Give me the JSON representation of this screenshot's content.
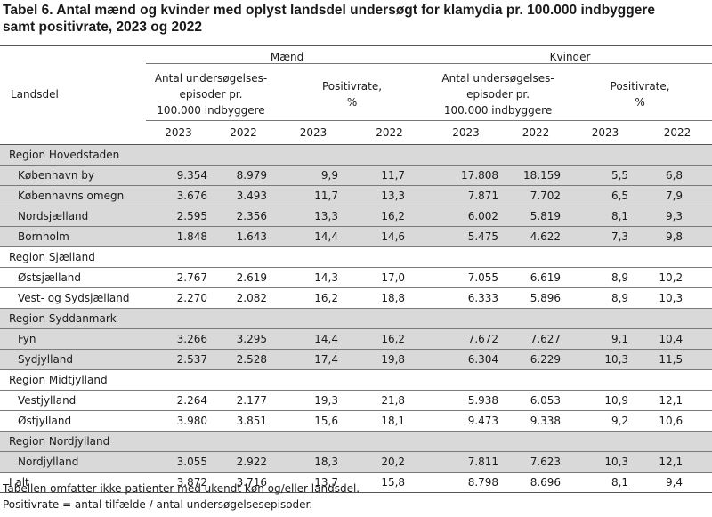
{
  "title": {
    "line1": "Tabel 6. Antal mænd og kvinder med oplyst landsdel undersøgt for klamydia pr. 100.000 indbyggere",
    "line2": "samt positivrate, 2023 og 2022"
  },
  "header": {
    "landsdel": "Landsdel",
    "men": "Mænd",
    "women": "Kvinder",
    "examined_line1": "Antal undersøgelses-",
    "examined_line2": "episoder pr.",
    "examined_line3": "100.000 indbyggere",
    "positive_line1": "Positivrate,",
    "positive_line2": "%",
    "years": [
      "2023",
      "2022",
      "2023",
      "2022",
      "2023",
      "2022",
      "2023",
      "2022"
    ]
  },
  "rows": [
    {
      "type": "region",
      "label": "Region Hovedstaden"
    },
    {
      "type": "data",
      "label": "København by",
      "values": [
        "9.354",
        "8.979",
        "9,9",
        "11,7",
        "17.808",
        "18.159",
        "5,5",
        "6,8"
      ]
    },
    {
      "type": "data",
      "label": "Københavns omegn",
      "values": [
        "3.676",
        "3.493",
        "11,7",
        "13,3",
        "7.871",
        "7.702",
        "6,5",
        "7,9"
      ]
    },
    {
      "type": "data",
      "label": "Nordsjælland",
      "values": [
        "2.595",
        "2.356",
        "13,3",
        "16,2",
        "6.002",
        "5.819",
        "8,1",
        "9,3"
      ]
    },
    {
      "type": "data",
      "label": "Bornholm",
      "values": [
        "1.848",
        "1.643",
        "14,4",
        "14,6",
        "5.475",
        "4.622",
        "7,3",
        "9,8"
      ]
    },
    {
      "type": "region",
      "label": "Region Sjælland"
    },
    {
      "type": "data",
      "label": "Østsjælland",
      "values": [
        "2.767",
        "2.619",
        "14,3",
        "17,0",
        "7.055",
        "6.619",
        "8,9",
        "10,2"
      ]
    },
    {
      "type": "data",
      "label": "Vest- og Sydsjælland",
      "values": [
        "2.270",
        "2.082",
        "16,2",
        "18,8",
        "6.333",
        "5.896",
        "8,9",
        "10,3"
      ]
    },
    {
      "type": "region",
      "label": "Region Syddanmark"
    },
    {
      "type": "data",
      "label": "Fyn",
      "values": [
        "3.266",
        "3.295",
        "14,4",
        "16,2",
        "7.672",
        "7.627",
        "9,1",
        "10,4"
      ]
    },
    {
      "type": "data",
      "label": "Sydjylland",
      "values": [
        "2.537",
        "2.528",
        "17,4",
        "19,8",
        "6.304",
        "6.229",
        "10,3",
        "11,5"
      ]
    },
    {
      "type": "region",
      "label": "Region Midtjylland"
    },
    {
      "type": "data",
      "label": "Vestjylland",
      "values": [
        "2.264",
        "2.177",
        "19,3",
        "21,8",
        "5.938",
        "6.053",
        "10,9",
        "12,1"
      ]
    },
    {
      "type": "data",
      "label": "Østjylland",
      "values": [
        "3.980",
        "3.851",
        "15,6",
        "18,1",
        "9.473",
        "9.338",
        "9,2",
        "10,6"
      ]
    },
    {
      "type": "region",
      "label": "Region Nordjylland"
    },
    {
      "type": "data",
      "label": "Nordjylland",
      "values": [
        "3.055",
        "2.922",
        "18,3",
        "20,2",
        "7.811",
        "7.623",
        "10,3",
        "12,1"
      ]
    }
  ],
  "total": {
    "label": "I alt",
    "values": [
      "3.872",
      "3.716",
      "13,7",
      "15,8",
      "8.798",
      "8.696",
      "8,1",
      "9,4"
    ]
  },
  "notes": {
    "line1": "Tabellen omfatter ikke patienter med ukendt køn og/eller landsdel.",
    "line2": "Positivrate = antal tilfælde / antal undersøgelsesepisoder."
  },
  "colors": {
    "shade": "#d9d9d9",
    "rule": "#555555"
  }
}
